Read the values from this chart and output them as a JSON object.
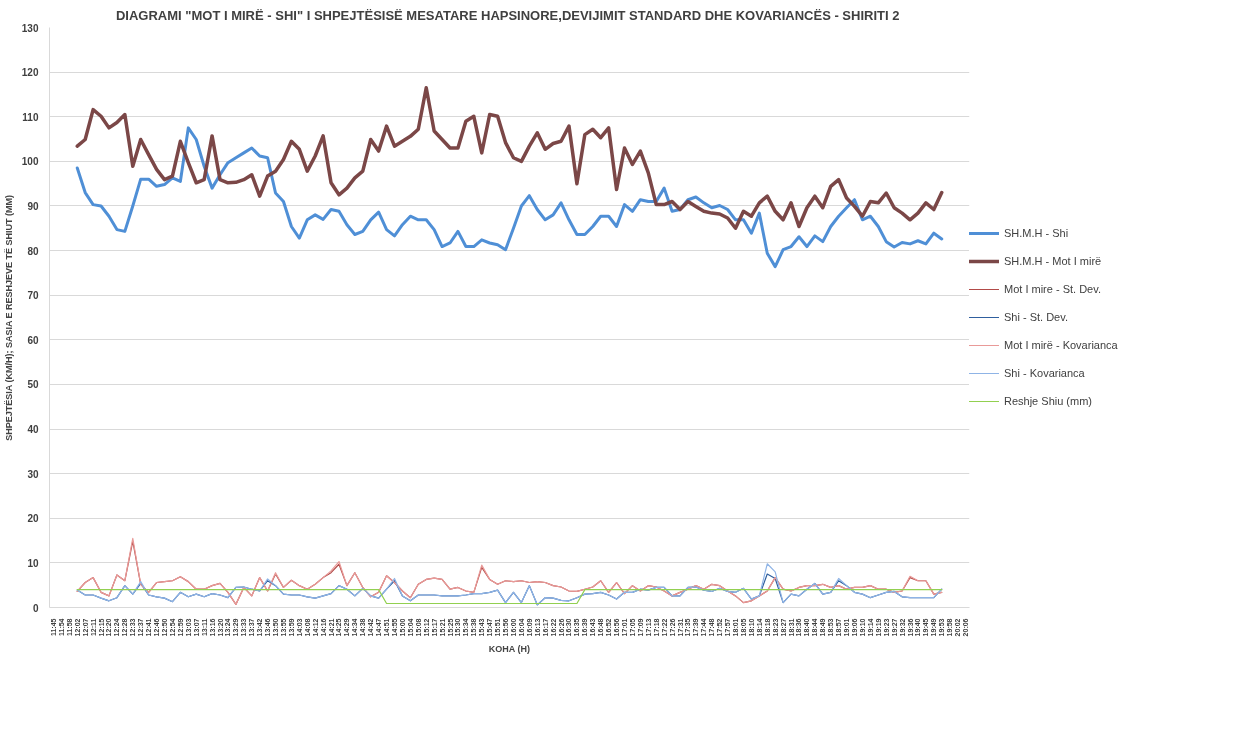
{
  "chart_data": {
    "type": "line",
    "title": "DIAGRAMI \"MOT I MIRË - SHI\" I SHPEJTËSISË MESATARE HAPSINORE,DEVIJIMIT  STANDARD DHE KOVARIANCËS - SHIRITI 2",
    "xlabel": "KOHA (H)",
    "ylabel": "SHPEJTËSIA (KM/H); SASIA E RESHJEVE TË SHIUT (MM)",
    "categories": [
      "11:45",
      "11:54",
      "11:58",
      "12:02",
      "12:07",
      "12:11",
      "12:15",
      "12:20",
      "12:24",
      "12:28",
      "12:33",
      "12:37",
      "12:41",
      "12:46",
      "12:50",
      "12:54",
      "12:59",
      "13:03",
      "13:07",
      "13:11",
      "13:16",
      "13:20",
      "13:24",
      "13:29",
      "13:33",
      "13:37",
      "13:42",
      "13:46",
      "13:50",
      "13:55",
      "13:59",
      "14:03",
      "14:08",
      "14:12",
      "14:16",
      "14:21",
      "14:25",
      "14:29",
      "14:34",
      "14:38",
      "14:42",
      "14:47",
      "14:51",
      "14:55",
      "15:00",
      "15:04",
      "15:08",
      "15:12",
      "15:17",
      "15:21",
      "15:25",
      "15:30",
      "15:34",
      "15:38",
      "15:43",
      "15:47",
      "15:51",
      "15:56",
      "16:00",
      "16:04",
      "16:09",
      "16:13",
      "16:17",
      "16:22",
      "16:26",
      "16:30",
      "16:35",
      "16:39",
      "16:43",
      "16:48",
      "16:52",
      "16:56",
      "17:01",
      "17:05",
      "17:09",
      "17:13",
      "17:18",
      "17:22",
      "17:26",
      "17:31",
      "17:35",
      "17:39",
      "17:44",
      "17:48",
      "17:52",
      "17:57",
      "18:01",
      "18:05",
      "18:10",
      "18:14",
      "18:18",
      "18:23",
      "18:27",
      "18:31",
      "18:36",
      "18:40",
      "18:44",
      "18:49",
      "18:53",
      "18:57",
      "19:01",
      "19:06",
      "19:10",
      "19:14",
      "19:19",
      "19:23",
      "19:27",
      "19:32",
      "19:36",
      "19:40",
      "19:45",
      "19:49",
      "19:53",
      "19:58",
      "20:02",
      "20:06"
    ],
    "series": [
      {
        "name": "SH.M.H - Shi",
        "color": "#4f8fd6",
        "values": [
          null,
          null,
          null,
          98.5,
          93,
          90.3,
          90,
          87.7,
          84.7,
          84.3,
          90,
          96,
          96,
          94.4,
          94.8,
          96.3,
          95.5,
          107.5,
          104.9,
          98.9,
          94,
          97,
          99.7,
          100.8,
          101.9,
          103,
          101.2,
          100.8,
          92.9,
          91,
          85.4,
          82.8,
          86.9,
          88,
          87,
          89.2,
          88.8,
          85.8,
          83.6,
          84.3,
          86.9,
          88.6,
          84.7,
          83.3,
          85.8,
          87.7,
          86.9,
          86.9,
          84.7,
          80.9,
          81.7,
          84.3,
          80.9,
          80.9,
          82.4,
          81.7,
          81.3,
          80.2,
          85,
          90,
          92.3,
          89.2,
          86.9,
          88,
          90.7,
          86.9,
          83.6,
          83.6,
          85.4,
          87.7,
          87.7,
          85.4,
          90.3,
          88.8,
          91.4,
          91,
          91,
          94,
          88.8,
          89.2,
          91.4,
          92,
          90.7,
          89.6,
          90.1,
          89.2,
          86.9,
          86.9,
          83.9,
          88.4,
          79.4,
          76.4,
          80.2,
          80.9,
          83.1,
          80.9,
          83.3,
          82,
          85.4,
          87.7,
          89.6,
          91.4,
          86.9,
          87.7,
          85.4,
          82,
          80.8,
          81.8,
          81.5,
          82.2,
          81.5,
          83.9,
          82.6,
          null,
          null,
          null
        ]
      },
      {
        "name": "SH.M.H - Mot I mirë",
        "color": "#7b4747",
        "values": [
          null,
          null,
          null,
          103.4,
          104.9,
          111.6,
          110.1,
          107.5,
          108.7,
          110.5,
          98.9,
          104.9,
          101.5,
          98.2,
          95.9,
          96.7,
          104.5,
          99.7,
          95.2,
          95.9,
          105.7,
          95.9,
          95.2,
          95.3,
          95.9,
          97,
          92.2,
          96.7,
          97.8,
          100.4,
          104.5,
          102.7,
          97.8,
          101.2,
          105.7,
          95.2,
          92.5,
          94,
          96.3,
          97.8,
          104.9,
          102.3,
          107.9,
          103.4,
          104.5,
          105.6,
          107.2,
          116.5,
          106.8,
          104.9,
          103,
          103,
          109,
          110.1,
          101.9,
          110.5,
          110.1,
          104.2,
          100.8,
          100,
          103.4,
          106.4,
          102.7,
          104,
          104.5,
          107.9,
          95,
          106,
          107.2,
          105.3,
          107.5,
          93.7,
          103,
          99.3,
          102.3,
          97.4,
          90.3,
          90.3,
          91,
          89.2,
          91,
          89.9,
          88.8,
          88.4,
          88.2,
          87.3,
          85,
          88.8,
          87.7,
          90.7,
          92.2,
          88.8,
          86.9,
          90.7,
          85.4,
          89.6,
          92.2,
          89.6,
          94.4,
          95.9,
          91.8,
          89.9,
          87.7,
          91,
          90.7,
          92.9,
          89.6,
          88.4,
          86.9,
          88.4,
          90.7,
          89.2,
          93,
          null,
          null,
          null
        ]
      },
      {
        "name": "Mot I mire - St. Dev.",
        "color": "#b24a48",
        "values": [
          null,
          null,
          null,
          3.6,
          5.6,
          6.7,
          3.4,
          2.6,
          7.3,
          6,
          14.9,
          5.2,
          3.4,
          5.6,
          5.8,
          6,
          6.9,
          5.8,
          4.1,
          4.1,
          4.9,
          5.4,
          3.4,
          0.7,
          4.5,
          2.6,
          6.7,
          3.7,
          7.5,
          4.5,
          6.1,
          4.9,
          4.1,
          5.2,
          6.7,
          7.8,
          9.7,
          4.9,
          7.8,
          4.5,
          2.4,
          3.4,
          7.1,
          5.6,
          3.7,
          2.2,
          5.2,
          6.3,
          6.6,
          6.3,
          4.1,
          4.5,
          3.7,
          3.4,
          9,
          6.3,
          5.2,
          6,
          5.8,
          6,
          5.6,
          5.8,
          5.6,
          4.9,
          4.6,
          3.7,
          3.6,
          4.1,
          4.6,
          6,
          3.4,
          5.6,
          3.1,
          4.9,
          3.7,
          4.9,
          4.6,
          3.7,
          2.6,
          3.4,
          4.1,
          4.9,
          4.1,
          5.2,
          4.9,
          3.7,
          2.6,
          1.1,
          1.5,
          2.6,
          3.7,
          6.7,
          4.1,
          3.7,
          4.5,
          4.9,
          4.9,
          5.2,
          4.5,
          4.9,
          4.1,
          4.5,
          4.5,
          4.9,
          4.1,
          4.1,
          3.4,
          3.7,
          6.7,
          6,
          6,
          3,
          3.4,
          null,
          null,
          null
        ]
      },
      {
        "name": "Shi - St. Dev.",
        "color": "#2f5f9e",
        "values": [
          null,
          null,
          null,
          3.9,
          2.8,
          2.8,
          2.1,
          1.5,
          2.2,
          4.9,
          3,
          5.4,
          2.8,
          2.4,
          2.1,
          1.3,
          3.4,
          2.4,
          3,
          2.4,
          3.1,
          2.8,
          2.2,
          4.5,
          4.6,
          4.1,
          3.7,
          6,
          4.9,
          3,
          2.8,
          2.8,
          2.4,
          2.1,
          2.6,
          3.1,
          4.9,
          4.1,
          2.6,
          4.3,
          2.6,
          2.1,
          4.1,
          6,
          2.6,
          1.5,
          2.8,
          2.8,
          2.8,
          2.6,
          2.6,
          2.6,
          2.8,
          3.1,
          3.1,
          3.4,
          3.9,
          1.1,
          3.4,
          1.1,
          4.9,
          0.6,
          2.2,
          2.1,
          1.6,
          1.5,
          2.2,
          3,
          3.1,
          3.4,
          2.8,
          1.9,
          3.4,
          3.4,
          4.1,
          3.9,
          4.5,
          4.5,
          2.6,
          2.6,
          4.5,
          4.6,
          3.9,
          3.6,
          4.3,
          3.6,
          3.4,
          4.3,
          1.9,
          2.6,
          7.5,
          6.5,
          1.1,
          3,
          2.6,
          4.1,
          5.4,
          3,
          3.4,
          6,
          4.9,
          3.4,
          3,
          2.2,
          2.8,
          3.4,
          3.6,
          2.4,
          2.2,
          2.2,
          2.2,
          2.2,
          4.1,
          null,
          null,
          null
        ]
      },
      {
        "name": "Mot I mirë - Kovarianca",
        "color": "#e99a98",
        "values": [
          null,
          null,
          null,
          3.6,
          5.6,
          6.7,
          3.4,
          2.6,
          7.3,
          6,
          15.5,
          5.2,
          3.4,
          5.6,
          5.8,
          6,
          6.9,
          5.8,
          4.1,
          4.1,
          4.9,
          5.4,
          3.4,
          0.7,
          4.5,
          2.6,
          6.7,
          3.7,
          7.8,
          4.5,
          6.1,
          4.9,
          4.1,
          5.2,
          6.7,
          8.2,
          10.3,
          4.9,
          7.8,
          4.5,
          2.4,
          3.4,
          7.1,
          5.6,
          3.7,
          2.2,
          5.2,
          6.3,
          6.6,
          6.3,
          4.1,
          4.5,
          3.7,
          3.4,
          9.5,
          6.3,
          5.2,
          6,
          5.8,
          6,
          5.6,
          5.8,
          5.6,
          4.9,
          4.6,
          3.7,
          3.6,
          4.1,
          4.6,
          6,
          3.4,
          5.6,
          3.1,
          4.9,
          3.7,
          4.9,
          4.6,
          3.7,
          2.6,
          3.4,
          4.1,
          4.9,
          4.1,
          5.2,
          4.9,
          3.7,
          2.6,
          1.1,
          1.5,
          2.6,
          3.7,
          6.7,
          4.1,
          3.7,
          4.5,
          4.9,
          4.9,
          5.2,
          4.5,
          4.9,
          4.1,
          4.5,
          4.5,
          4.9,
          4.1,
          4.1,
          3.4,
          3.7,
          7,
          6,
          6,
          3,
          3.4,
          null,
          null,
          null
        ]
      },
      {
        "name": "Shi - Kovarianca",
        "color": "#8fb4e6",
        "values": [
          null,
          null,
          null,
          3.9,
          2.8,
          2.8,
          2.1,
          1.5,
          2.2,
          4.9,
          3,
          5.8,
          2.8,
          2.4,
          2.1,
          1.3,
          3.4,
          2.4,
          3,
          2.4,
          3.1,
          2.8,
          2.2,
          4.5,
          4.6,
          4.1,
          3.7,
          6.4,
          4.9,
          3,
          2.8,
          2.8,
          2.4,
          2.1,
          2.6,
          3.1,
          4.9,
          4.1,
          2.6,
          4.3,
          2.6,
          2.1,
          4.1,
          6.5,
          2.6,
          1.5,
          2.8,
          2.8,
          2.8,
          2.6,
          2.6,
          2.6,
          2.8,
          3.1,
          3.1,
          3.4,
          3.9,
          1.1,
          3.4,
          1.1,
          4.9,
          0.6,
          2.2,
          2.1,
          1.6,
          1.5,
          2.2,
          3,
          3.1,
          3.4,
          2.8,
          1.9,
          3.4,
          3.4,
          4.1,
          3.9,
          4.5,
          4.5,
          2.6,
          2.6,
          4.5,
          4.6,
          3.9,
          3.6,
          4.3,
          3.6,
          3.4,
          4.3,
          1.9,
          2.6,
          9.8,
          8,
          1.1,
          3,
          2.6,
          4.1,
          5.4,
          3,
          3.4,
          6.5,
          4.9,
          3.4,
          3,
          2.2,
          2.8,
          3.4,
          3.6,
          2.4,
          2.2,
          2.2,
          2.2,
          2.2,
          4.1,
          null,
          null,
          null
        ]
      },
      {
        "name": "Reshje Shiu (mm)",
        "color": "#92d050",
        "values": [
          null,
          null,
          null,
          4,
          4,
          4,
          4,
          4,
          4,
          4,
          4,
          4,
          4,
          4,
          4,
          4,
          4,
          4,
          4,
          4,
          4,
          4,
          4,
          4,
          4,
          4,
          4,
          4,
          4,
          4,
          4,
          4,
          4,
          4,
          4,
          4,
          4,
          4,
          4,
          4,
          4,
          4,
          0.9,
          0.9,
          0.9,
          0.9,
          0.9,
          0.9,
          0.9,
          0.9,
          0.9,
          0.9,
          0.9,
          0.9,
          0.9,
          0.9,
          0.9,
          0.9,
          0.9,
          0.9,
          0.9,
          0.9,
          0.9,
          0.9,
          0.9,
          0.9,
          0.9,
          4,
          4,
          4,
          4,
          4,
          4,
          4,
          4,
          4,
          4,
          4,
          4,
          4,
          4,
          4,
          4,
          4,
          4,
          4,
          4,
          4,
          4,
          4,
          4,
          4,
          4,
          4,
          4,
          4,
          4,
          4,
          4,
          4,
          4,
          4,
          4,
          4,
          4,
          4,
          4,
          4,
          4,
          4,
          4,
          4,
          4,
          null,
          null,
          null
        ]
      }
    ],
    "ylim": [
      0,
      130
    ],
    "yticks": [
      0,
      10,
      20,
      30,
      40,
      50,
      60,
      70,
      80,
      90,
      100,
      110,
      120,
      130
    ],
    "grid": "y",
    "legend": "right"
  }
}
